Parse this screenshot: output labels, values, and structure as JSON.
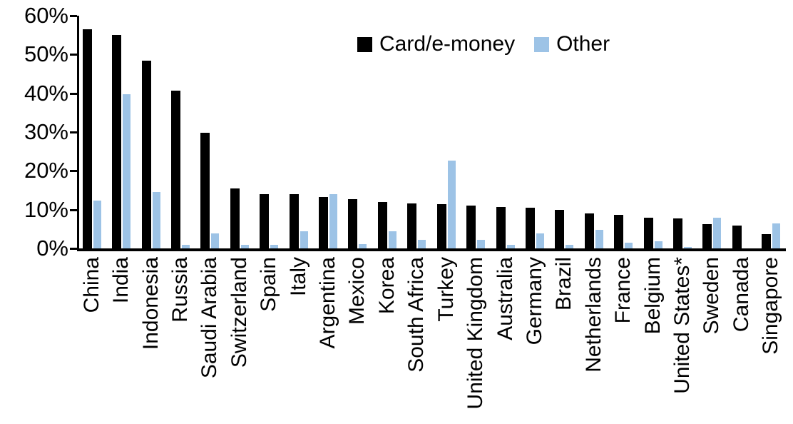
{
  "chart_data": {
    "type": "bar",
    "title": "",
    "xlabel": "",
    "ylabel": "",
    "categories": [
      "China",
      "India",
      "Indonesia",
      "Russia",
      "Saudi Arabia",
      "Switzerland",
      "Spain",
      "Italy",
      "Argentina",
      "Mexico",
      "Korea",
      "South Africa",
      "Turkey",
      "United Kingdom",
      "Australia",
      "Germany",
      "Brazil",
      "Netherlands",
      "France",
      "Belgium",
      "United States*",
      "Sweden",
      "Canada",
      "Singapore"
    ],
    "series": [
      {
        "name": "Card/e-money",
        "color": "#000000",
        "values": [
          56.5,
          55.1,
          48.4,
          40.6,
          29.8,
          15.5,
          14.0,
          13.9,
          13.3,
          12.7,
          12.0,
          11.6,
          11.5,
          11.0,
          10.7,
          10.5,
          9.9,
          9.0,
          8.6,
          8.0,
          7.8,
          6.3,
          5.8,
          3.7
        ]
      },
      {
        "name": "Other",
        "color": "#9DC3E6",
        "values": [
          12.3,
          39.7,
          14.5,
          0.9,
          3.8,
          0.9,
          0.9,
          4.5,
          14.0,
          1.1,
          4.4,
          2.2,
          22.6,
          2.3,
          0.9,
          3.8,
          1.0,
          4.7,
          1.4,
          1.8,
          0.4,
          8.0,
          0.0,
          6.5
        ]
      }
    ],
    "y_axis": {
      "min": 0,
      "max": 60,
      "tick_step": 10,
      "tick_labels": [
        "0%",
        "10%",
        "20%",
        "30%",
        "40%",
        "50%",
        "60%"
      ],
      "unit": "%"
    },
    "grid": false,
    "legend_position": "top-center"
  }
}
